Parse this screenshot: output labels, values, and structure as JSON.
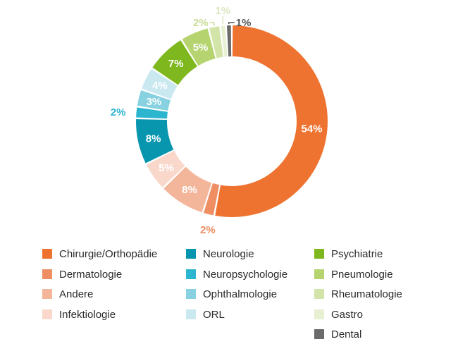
{
  "chart_data": {
    "type": "pie",
    "donut": true,
    "title": "",
    "legend_position": "bottom",
    "categories": [
      "Chirurgie/Orthopädie",
      "Dermatologie",
      "Andere",
      "Infektiologie",
      "Neurologie",
      "Neuropsychologie",
      "Ophthalmologie",
      "ORL",
      "Psychiatrie",
      "Pneumologie",
      "Rheumatologie",
      "Gastro",
      "Dental"
    ],
    "values": [
      54,
      2,
      8,
      5,
      8,
      2,
      3,
      4,
      7,
      5,
      2,
      1,
      1
    ],
    "labels": [
      "54%",
      "2%",
      "8%",
      "5%",
      "8%",
      "2%",
      "3%",
      "4%",
      "7%",
      "5%",
      "2%",
      "1%",
      "1%"
    ],
    "colors": [
      "#EE7330",
      "#EE8E62",
      "#F4B69B",
      "#F9D8CB",
      "#0796AE",
      "#2CB5CE",
      "#87D1E1",
      "#C9E8F0",
      "#7FB71E",
      "#B5D46F",
      "#D3E4A9",
      "#E7F0D1",
      "#6B6B6B"
    ]
  }
}
